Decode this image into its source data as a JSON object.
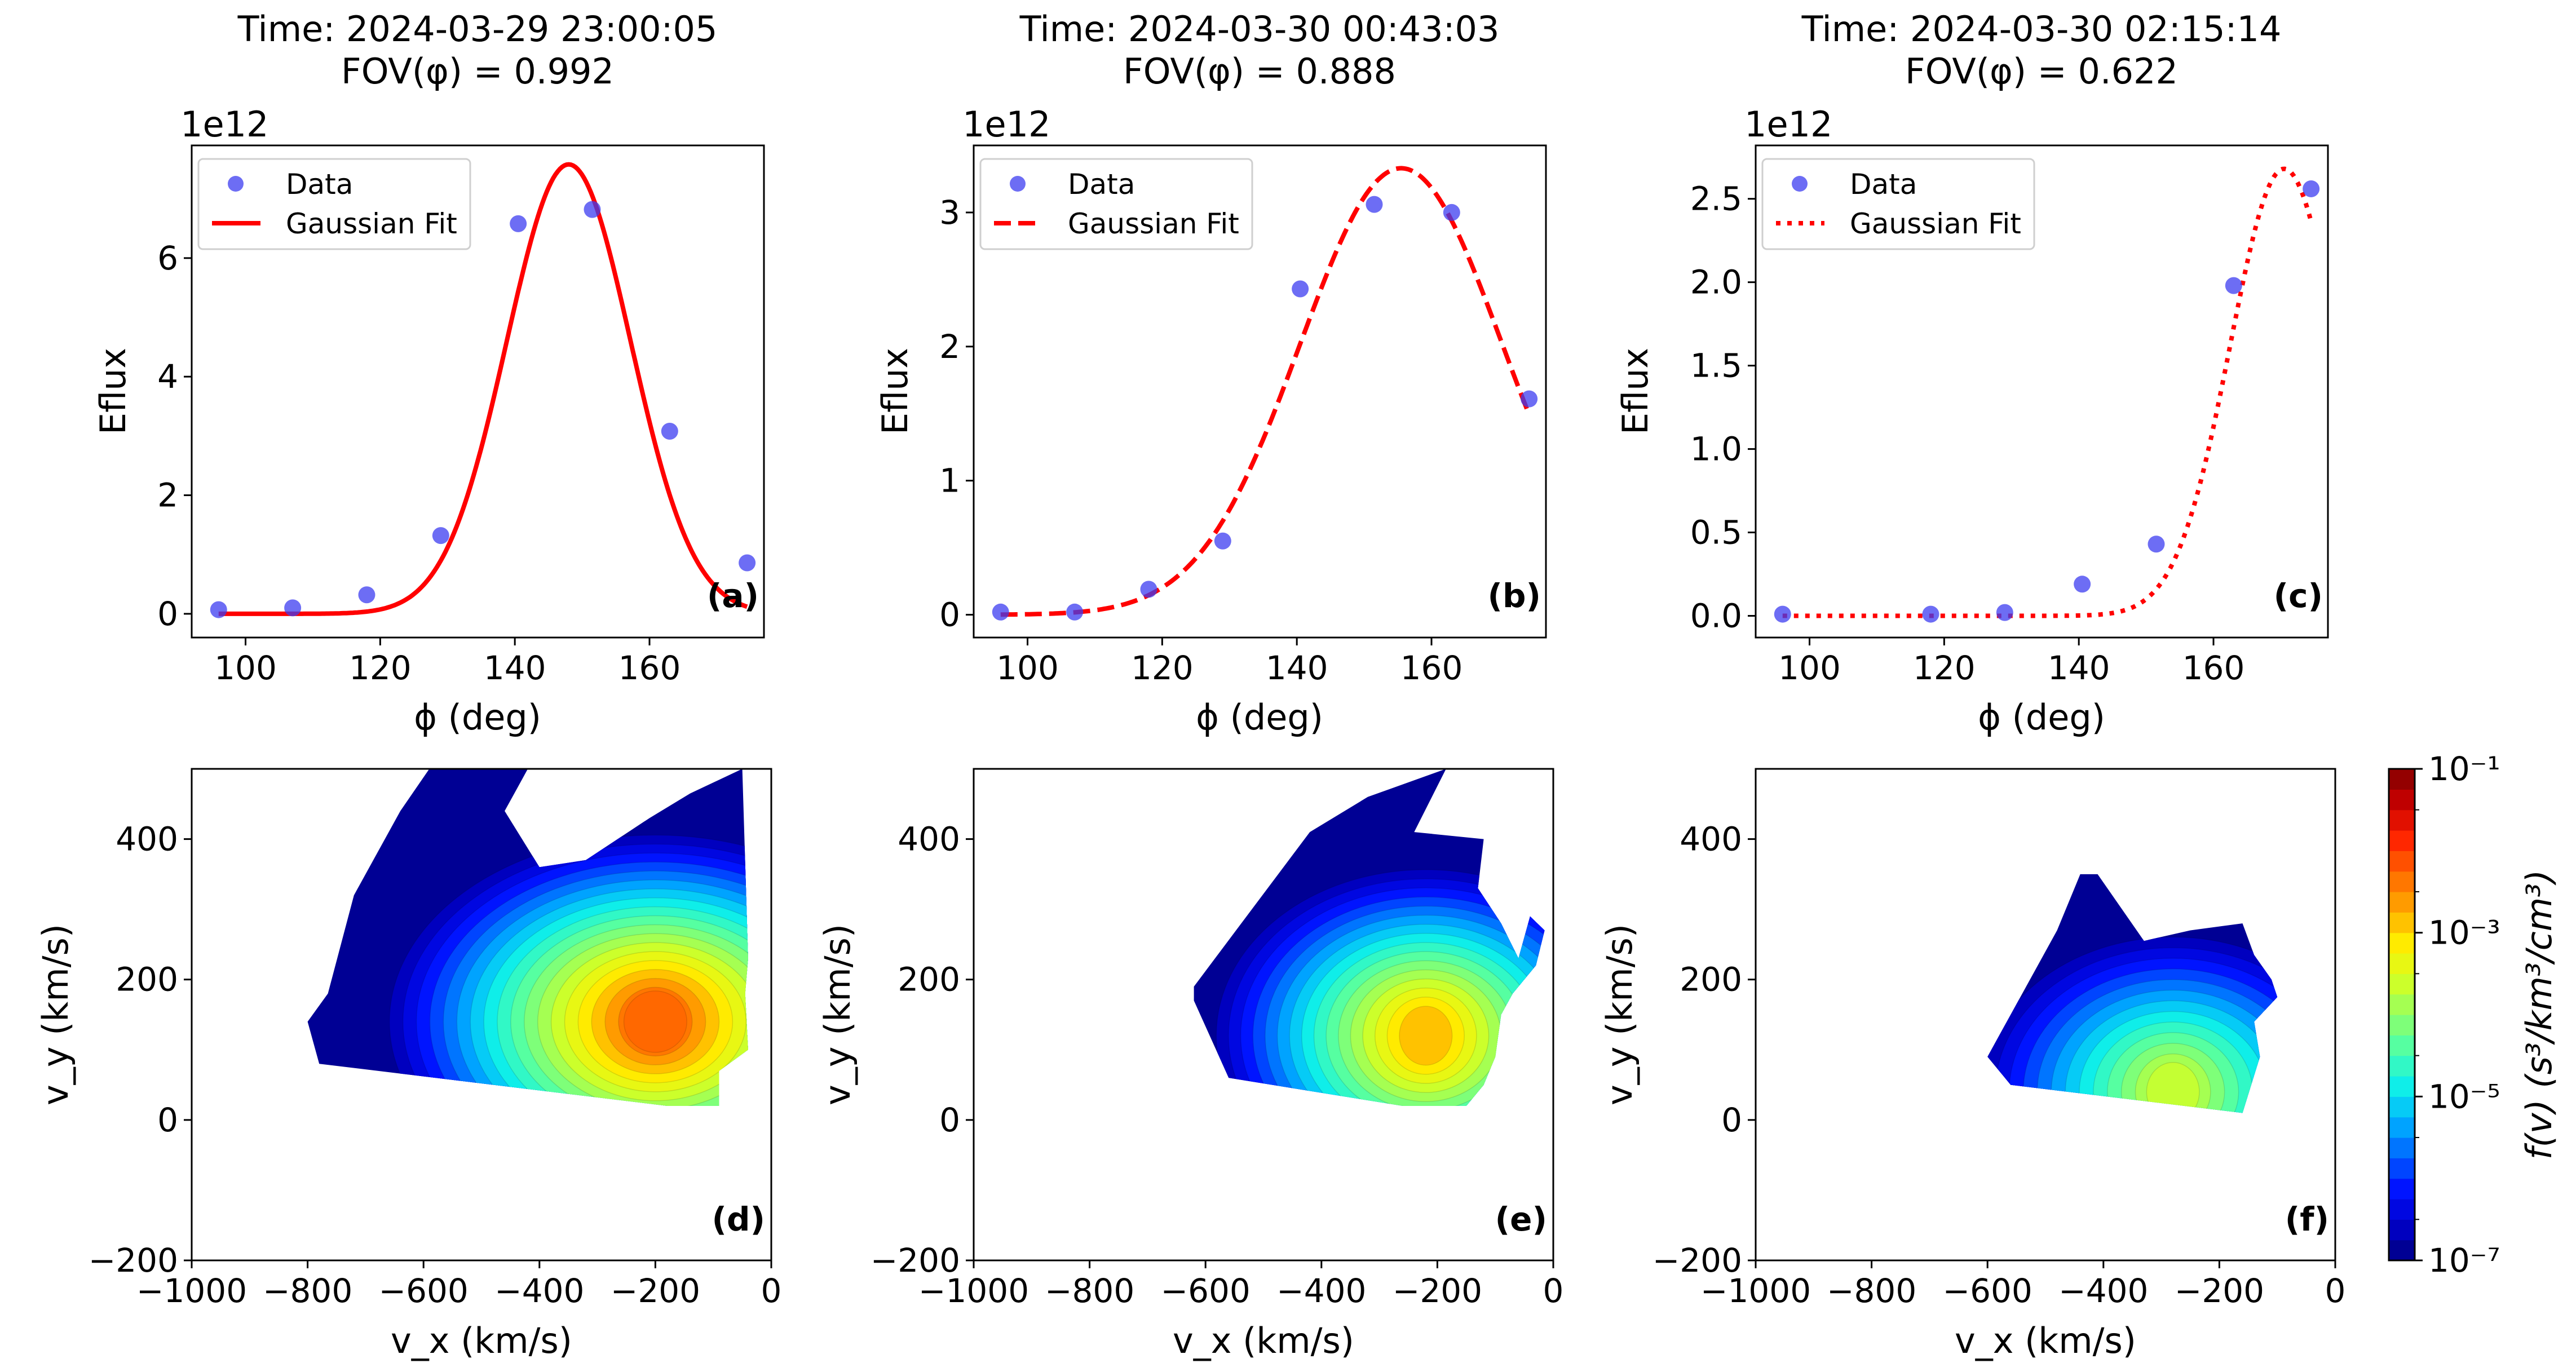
{
  "chart_data": [
    {
      "type": "scatter",
      "panel": "(a)",
      "title": "Time: 2024-03-29 23:00:05",
      "subtitle": "FOV(φ) = 0.992",
      "xlabel": "ϕ (deg)",
      "ylabel": "Eflux",
      "multiplier": "1e12",
      "xlim": [
        92,
        177
      ],
      "ylim": [
        -0.4,
        7.9
      ],
      "xticks": [
        100,
        120,
        140,
        160
      ],
      "yticks": [
        0,
        2,
        4,
        6
      ],
      "legend": [
        "Data",
        "Gaussian Fit"
      ],
      "legend_position": "top-left",
      "fit_style": "solid",
      "series": [
        {
          "name": "Data",
          "x": [
            96,
            107,
            118,
            129,
            140.5,
            151.5,
            163,
            174.5
          ],
          "y": [
            0.07,
            0.1,
            0.32,
            1.32,
            6.58,
            6.82,
            3.08,
            0.86
          ]
        },
        {
          "name": "Gaussian Fit",
          "amp": 7.58,
          "center": 148,
          "sigma": 9.2,
          "offset": 0.0,
          "x_range": [
            96,
            174.5
          ]
        }
      ]
    },
    {
      "type": "scatter",
      "panel": "(b)",
      "title": "Time: 2024-03-30 00:43:03",
      "subtitle": "FOV(φ) = 0.888",
      "xlabel": "ϕ (deg)",
      "ylabel": "Eflux",
      "multiplier": "1e12",
      "xlim": [
        92,
        177
      ],
      "ylim": [
        -0.17,
        3.5
      ],
      "xticks": [
        100,
        120,
        140,
        160
      ],
      "yticks": [
        0,
        1,
        2,
        3
      ],
      "legend": [
        "Data",
        "Gaussian Fit"
      ],
      "legend_position": "top-left",
      "fit_style": "dashed",
      "series": [
        {
          "name": "Data",
          "x": [
            96,
            107,
            118,
            129,
            140.5,
            151.5,
            163,
            174.5
          ],
          "y": [
            0.02,
            0.02,
            0.19,
            0.55,
            2.43,
            3.06,
            3.0,
            1.61
          ]
        },
        {
          "name": "Gaussian Fit",
          "amp": 3.33,
          "center": 155.5,
          "sigma": 15.0,
          "offset": 0.0,
          "x_range": [
            96,
            174.5
          ]
        }
      ]
    },
    {
      "type": "scatter",
      "panel": "(c)",
      "title": "Time: 2024-03-30 02:15:14",
      "subtitle": "FOV(φ) = 0.622",
      "xlabel": "ϕ (deg)",
      "ylabel": "Eflux",
      "multiplier": "1e12",
      "xlim": [
        92,
        177
      ],
      "ylim": [
        -0.13,
        2.82
      ],
      "xticks": [
        100,
        120,
        140,
        160
      ],
      "yticks": [
        0.0,
        0.5,
        1.0,
        1.5,
        2.0,
        2.5
      ],
      "legend": [
        "Data",
        "Gaussian Fit"
      ],
      "legend_position": "top-left",
      "fit_style": "dotted",
      "series": [
        {
          "name": "Data",
          "x": [
            96,
            118,
            129,
            140.5,
            151.5,
            163,
            174.5
          ],
          "y": [
            0.01,
            0.01,
            0.02,
            0.19,
            0.43,
            1.98,
            2.56
          ]
        },
        {
          "name": "Gaussian Fit",
          "amp": 2.68,
          "center": 170.5,
          "sigma": 8.0,
          "offset": 0.0,
          "x_range": [
            96,
            174.5
          ]
        }
      ]
    },
    {
      "type": "contour",
      "panel": "(d)",
      "xlabel": "v_x (km/s)",
      "ylabel": "v_y (km/s)",
      "xlim": [
        -1000,
        0
      ],
      "ylim": [
        -200,
        500
      ],
      "xticks": [
        -1000,
        -800,
        -600,
        -400,
        -200,
        0
      ],
      "yticks": [
        -200,
        0,
        200,
        400
      ],
      "hull": [
        [
          -800,
          140
        ],
        [
          -765,
          180
        ],
        [
          -720,
          320
        ],
        [
          -640,
          440
        ],
        [
          -590,
          500
        ],
        [
          -420,
          500
        ],
        [
          -440,
          470
        ],
        [
          -460,
          440
        ],
        [
          -400,
          360
        ],
        [
          -320,
          370
        ],
        [
          -210,
          430
        ],
        [
          -140,
          465
        ],
        [
          -50,
          500
        ],
        [
          -40,
          230
        ],
        [
          -45,
          180
        ],
        [
          -40,
          100
        ],
        [
          -90,
          70
        ],
        [
          -90,
          20
        ],
        [
          -140,
          20
        ],
        [
          -180,
          20
        ],
        [
          -780,
          80
        ]
      ],
      "peak": {
        "vx": -200,
        "vy": 140,
        "log10_f": -2.4,
        "rx": 155,
        "ry": 125
      },
      "gradient": {
        "x_steps_per_level": 0.0125,
        "y_steps_per_level": 0.0085
      }
    },
    {
      "type": "contour",
      "panel": "(e)",
      "xlabel": "v_x (km/s)",
      "ylabel": "v_y (km/s)",
      "xlim": [
        -1000,
        0
      ],
      "ylim": [
        -200,
        500
      ],
      "xticks": [
        -1000,
        -800,
        -600,
        -400,
        -200,
        0
      ],
      "yticks": [
        -200,
        0,
        200,
        400
      ],
      "hull": [
        [
          -620,
          190
        ],
        [
          -520,
          300
        ],
        [
          -420,
          410
        ],
        [
          -320,
          460
        ],
        [
          -185,
          500
        ],
        [
          -240,
          410
        ],
        [
          -120,
          400
        ],
        [
          -130,
          330
        ],
        [
          -90,
          280
        ],
        [
          -60,
          230
        ],
        [
          -40,
          290
        ],
        [
          -15,
          270
        ],
        [
          -30,
          220
        ],
        [
          -70,
          180
        ],
        [
          -90,
          150
        ],
        [
          -100,
          90
        ],
        [
          -120,
          50
        ],
        [
          -150,
          20
        ],
        [
          -260,
          20
        ],
        [
          -560,
          60
        ],
        [
          -620,
          170
        ]
      ],
      "peak": {
        "vx": -220,
        "vy": 120,
        "log10_f": -3.0,
        "rx": 130,
        "ry": 120
      },
      "gradient": {
        "x_steps_per_level": 0.0135,
        "y_steps_per_level": 0.009
      }
    },
    {
      "type": "contour",
      "panel": "(f)",
      "xlabel": "v_x (km/s)",
      "ylabel": "v_y (km/s)",
      "xlim": [
        -1000,
        0
      ],
      "ylim": [
        -200,
        500
      ],
      "xticks": [
        -1000,
        -800,
        -600,
        -400,
        -200,
        0
      ],
      "yticks": [
        -200,
        0,
        200,
        400
      ],
      "hull": [
        [
          -600,
          90
        ],
        [
          -540,
          180
        ],
        [
          -480,
          270
        ],
        [
          -440,
          350
        ],
        [
          -410,
          350
        ],
        [
          -330,
          255
        ],
        [
          -250,
          270
        ],
        [
          -160,
          280
        ],
        [
          -140,
          235
        ],
        [
          -110,
          200
        ],
        [
          -100,
          175
        ],
        [
          -140,
          140
        ],
        [
          -130,
          90
        ],
        [
          -160,
          10
        ],
        [
          -560,
          50
        ]
      ],
      "peak": {
        "vx": -280,
        "vy": 40,
        "log10_f": -3.8,
        "rx": 130,
        "ry": 120
      },
      "gradient": {
        "x_steps_per_level": 0.0155,
        "y_steps_per_level": 0.0105
      }
    }
  ],
  "colorbar": {
    "label": "f(v) (s³/km³/cm³)",
    "vmin_exp": -7,
    "vmax_exp": -1,
    "levels_per_decade": 4,
    "tick_exps": [
      -7,
      -5,
      -3,
      -1
    ],
    "tick_labels": [
      "10⁻⁷",
      "10⁻⁵",
      "10⁻³",
      "10⁻¹"
    ],
    "colormap_stops": [
      "#00007f",
      "#0000c8",
      "#0010ff",
      "#0064ff",
      "#00b4ff",
      "#10f0e8",
      "#4dffaa",
      "#92ff65",
      "#d4ff23",
      "#ffee00",
      "#ffa800",
      "#ff6a00",
      "#ff2400",
      "#c80000",
      "#7f0000"
    ]
  },
  "colors": {
    "data_marker": "#3c3cf0",
    "fit_line": "#ff0000"
  }
}
